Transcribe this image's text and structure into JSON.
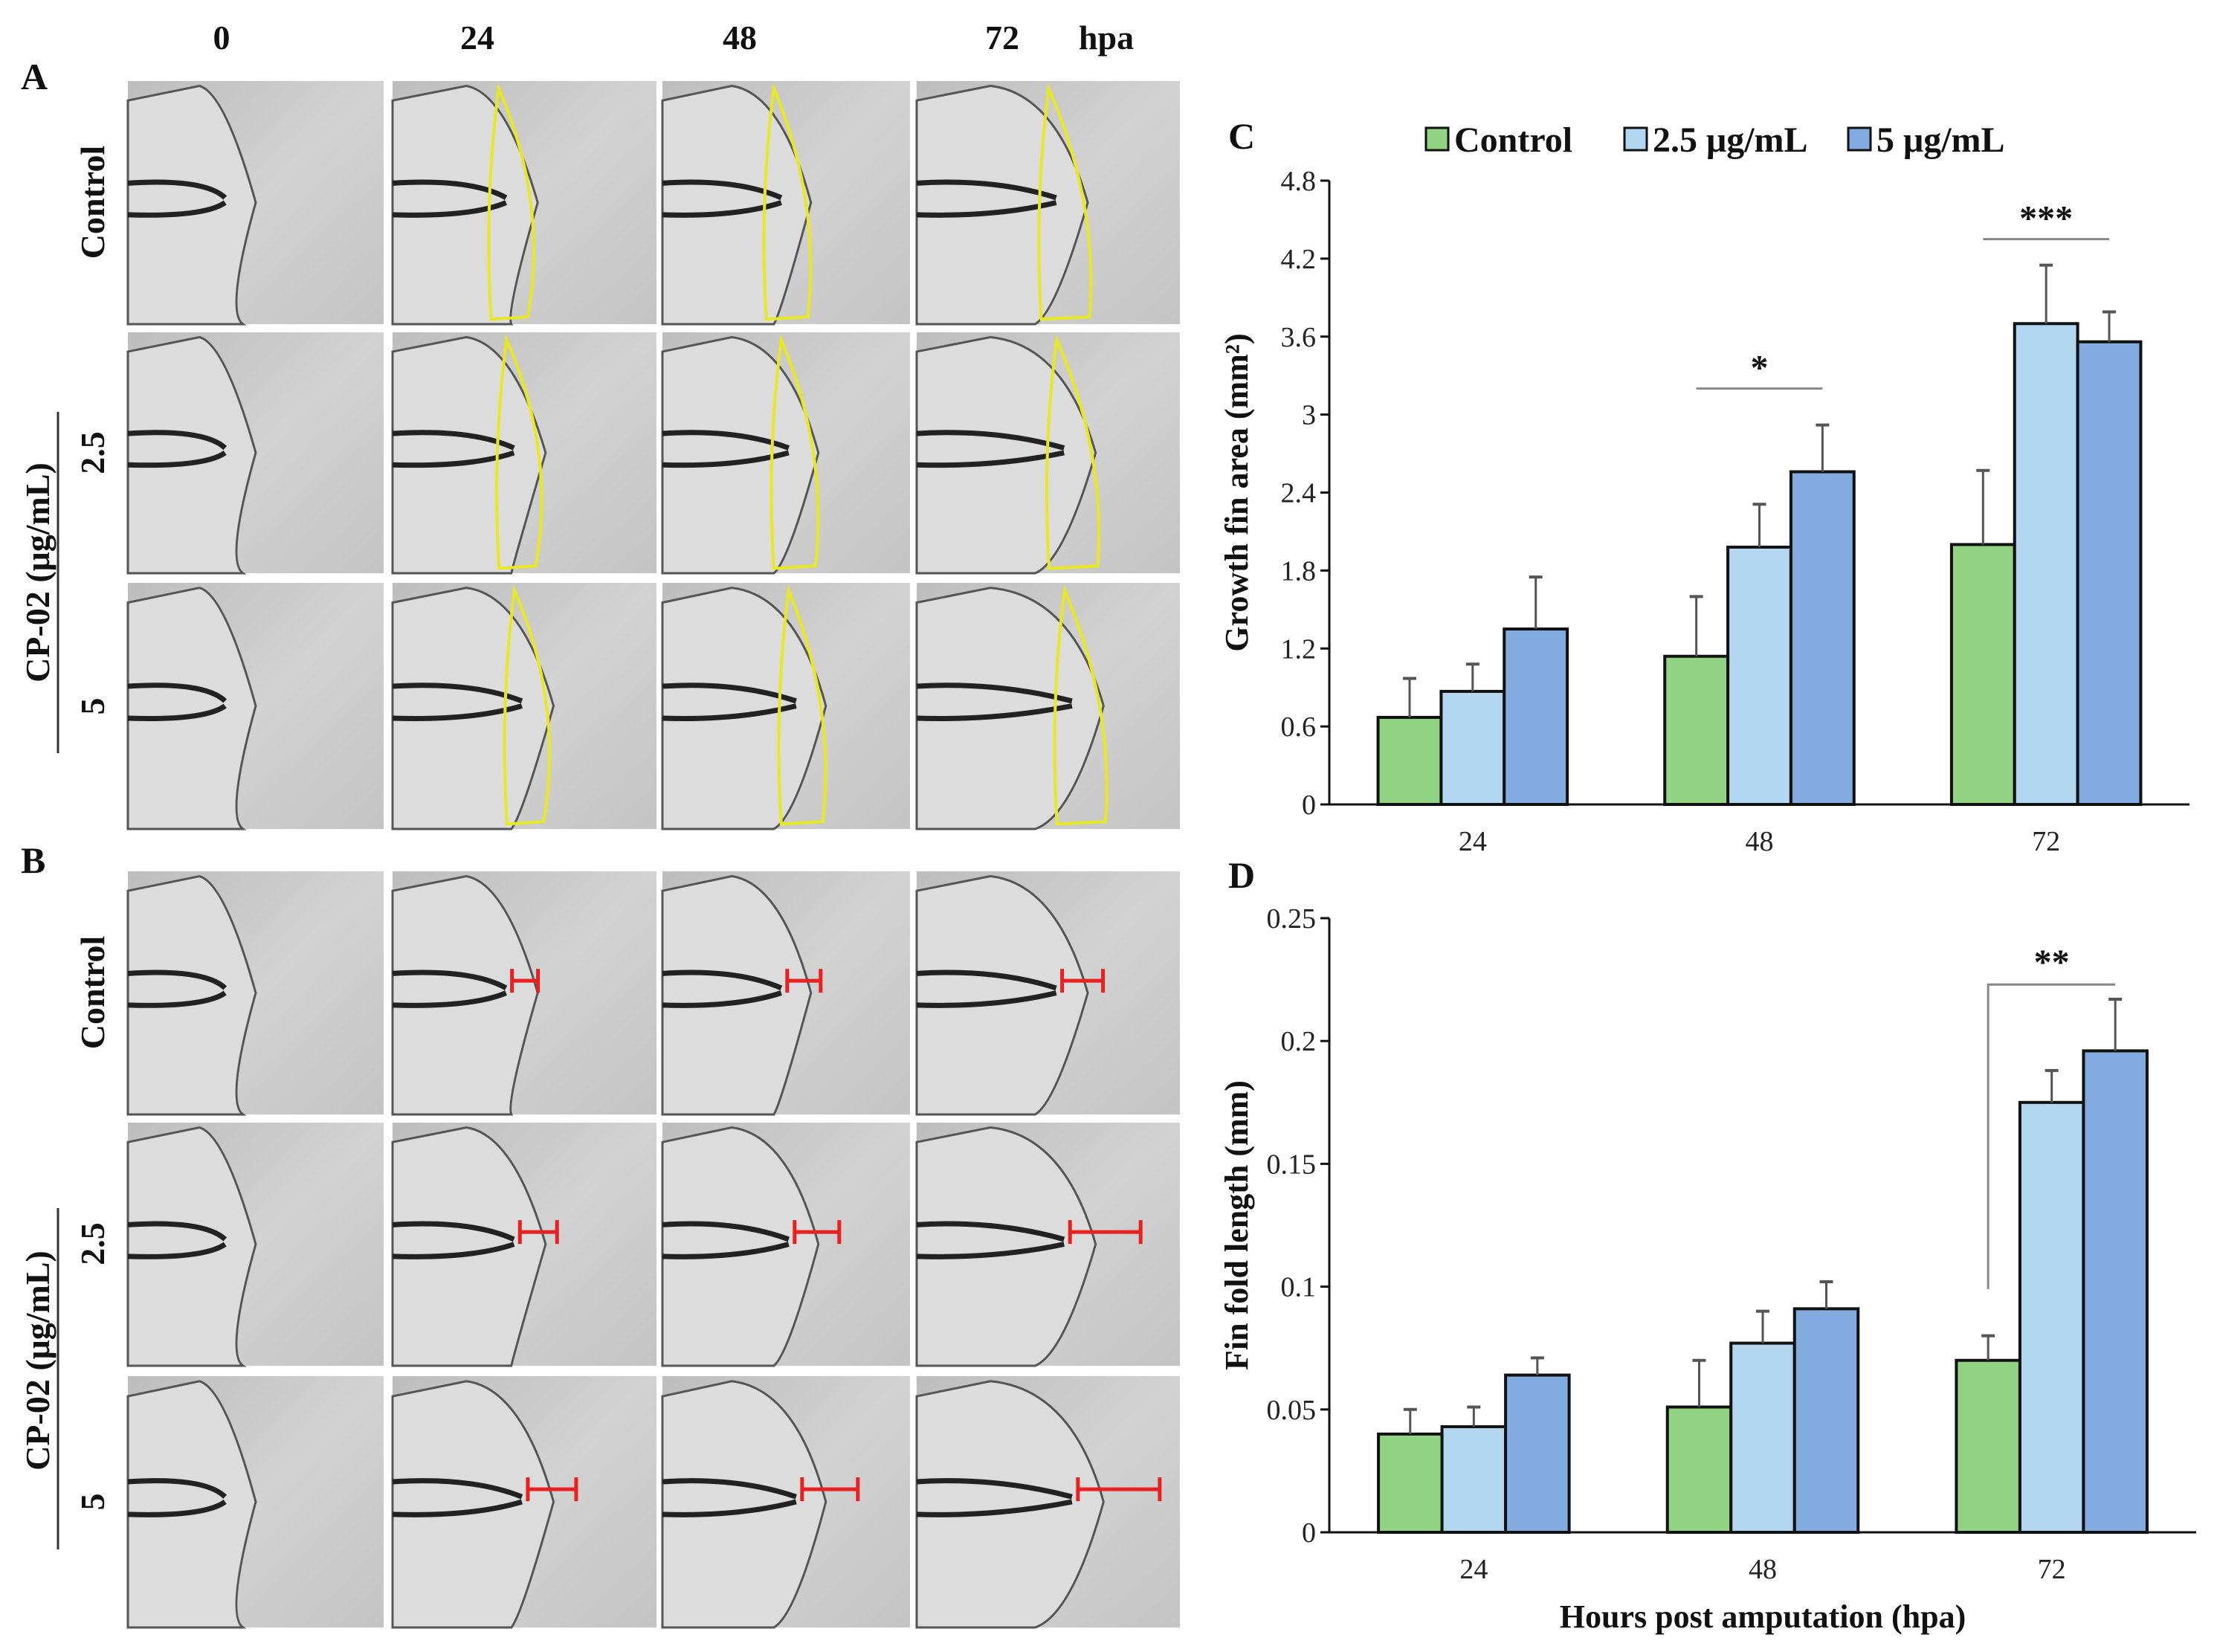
{
  "figure": {
    "time_headers": [
      "0",
      "24",
      "48",
      "72"
    ],
    "time_unit": "hpa",
    "panel_labels": {
      "A": "A",
      "B": "B",
      "C": "C",
      "D": "D"
    },
    "row_labels": {
      "control": "Control",
      "low": "2.5",
      "high": "5",
      "group": "CP-02 (μg/mL)"
    }
  },
  "colors": {
    "control": "#93d384",
    "low": "#b3d7f0",
    "high": "#82abe0",
    "outline": "#e8e820",
    "measure": "#e82020"
  },
  "chart_data": [
    {
      "id": "C",
      "type": "bar",
      "title": "",
      "categories": [
        "24",
        "48",
        "72"
      ],
      "xlabel": "",
      "ylabel": "Growth fin area (mm²)",
      "ylim": [
        0,
        4.8
      ],
      "yticks": [
        "0",
        "0.6",
        "1.2",
        "1.8",
        "2.4",
        "3",
        "3.6",
        "4.2",
        "4.8"
      ],
      "legend": "top",
      "series": [
        {
          "name": "Control",
          "values": [
            0.67,
            1.14,
            2.0
          ],
          "errors": [
            0.3,
            0.46,
            0.57
          ]
        },
        {
          "name": "2.5 μg/mL",
          "values": [
            0.87,
            1.98,
            3.7
          ],
          "errors": [
            0.21,
            0.33,
            0.45
          ]
        },
        {
          "name": "5 μg/mL",
          "values": [
            1.35,
            2.56,
            3.56
          ],
          "errors": [
            0.4,
            0.36,
            0.23
          ]
        }
      ],
      "annotations": [
        {
          "text": "*",
          "category": "48",
          "y": 3.2
        },
        {
          "text": "***",
          "category": "72",
          "y": 4.35
        }
      ]
    },
    {
      "id": "D",
      "type": "bar",
      "title": "",
      "categories": [
        "24",
        "48",
        "72"
      ],
      "xlabel": "Hours post amputation (hpa)",
      "ylabel": "Fin fold length (mm)",
      "ylim": [
        0,
        0.25
      ],
      "yticks": [
        "0",
        "0.05",
        "0.1",
        "0.15",
        "0.2",
        "0.25"
      ],
      "series": [
        {
          "name": "Control",
          "values": [
            0.04,
            0.051,
            0.07
          ],
          "errors": [
            0.01,
            0.019,
            0.01
          ]
        },
        {
          "name": "2.5 μg/mL",
          "values": [
            0.043,
            0.077,
            0.175
          ],
          "errors": [
            0.008,
            0.013,
            0.013
          ]
        },
        {
          "name": "5 μg/mL",
          "values": [
            0.064,
            0.091,
            0.196
          ],
          "errors": [
            0.007,
            0.011,
            0.021
          ]
        }
      ],
      "annotations": [
        {
          "text": "**",
          "category": "72",
          "y": 0.223
        }
      ]
    }
  ]
}
